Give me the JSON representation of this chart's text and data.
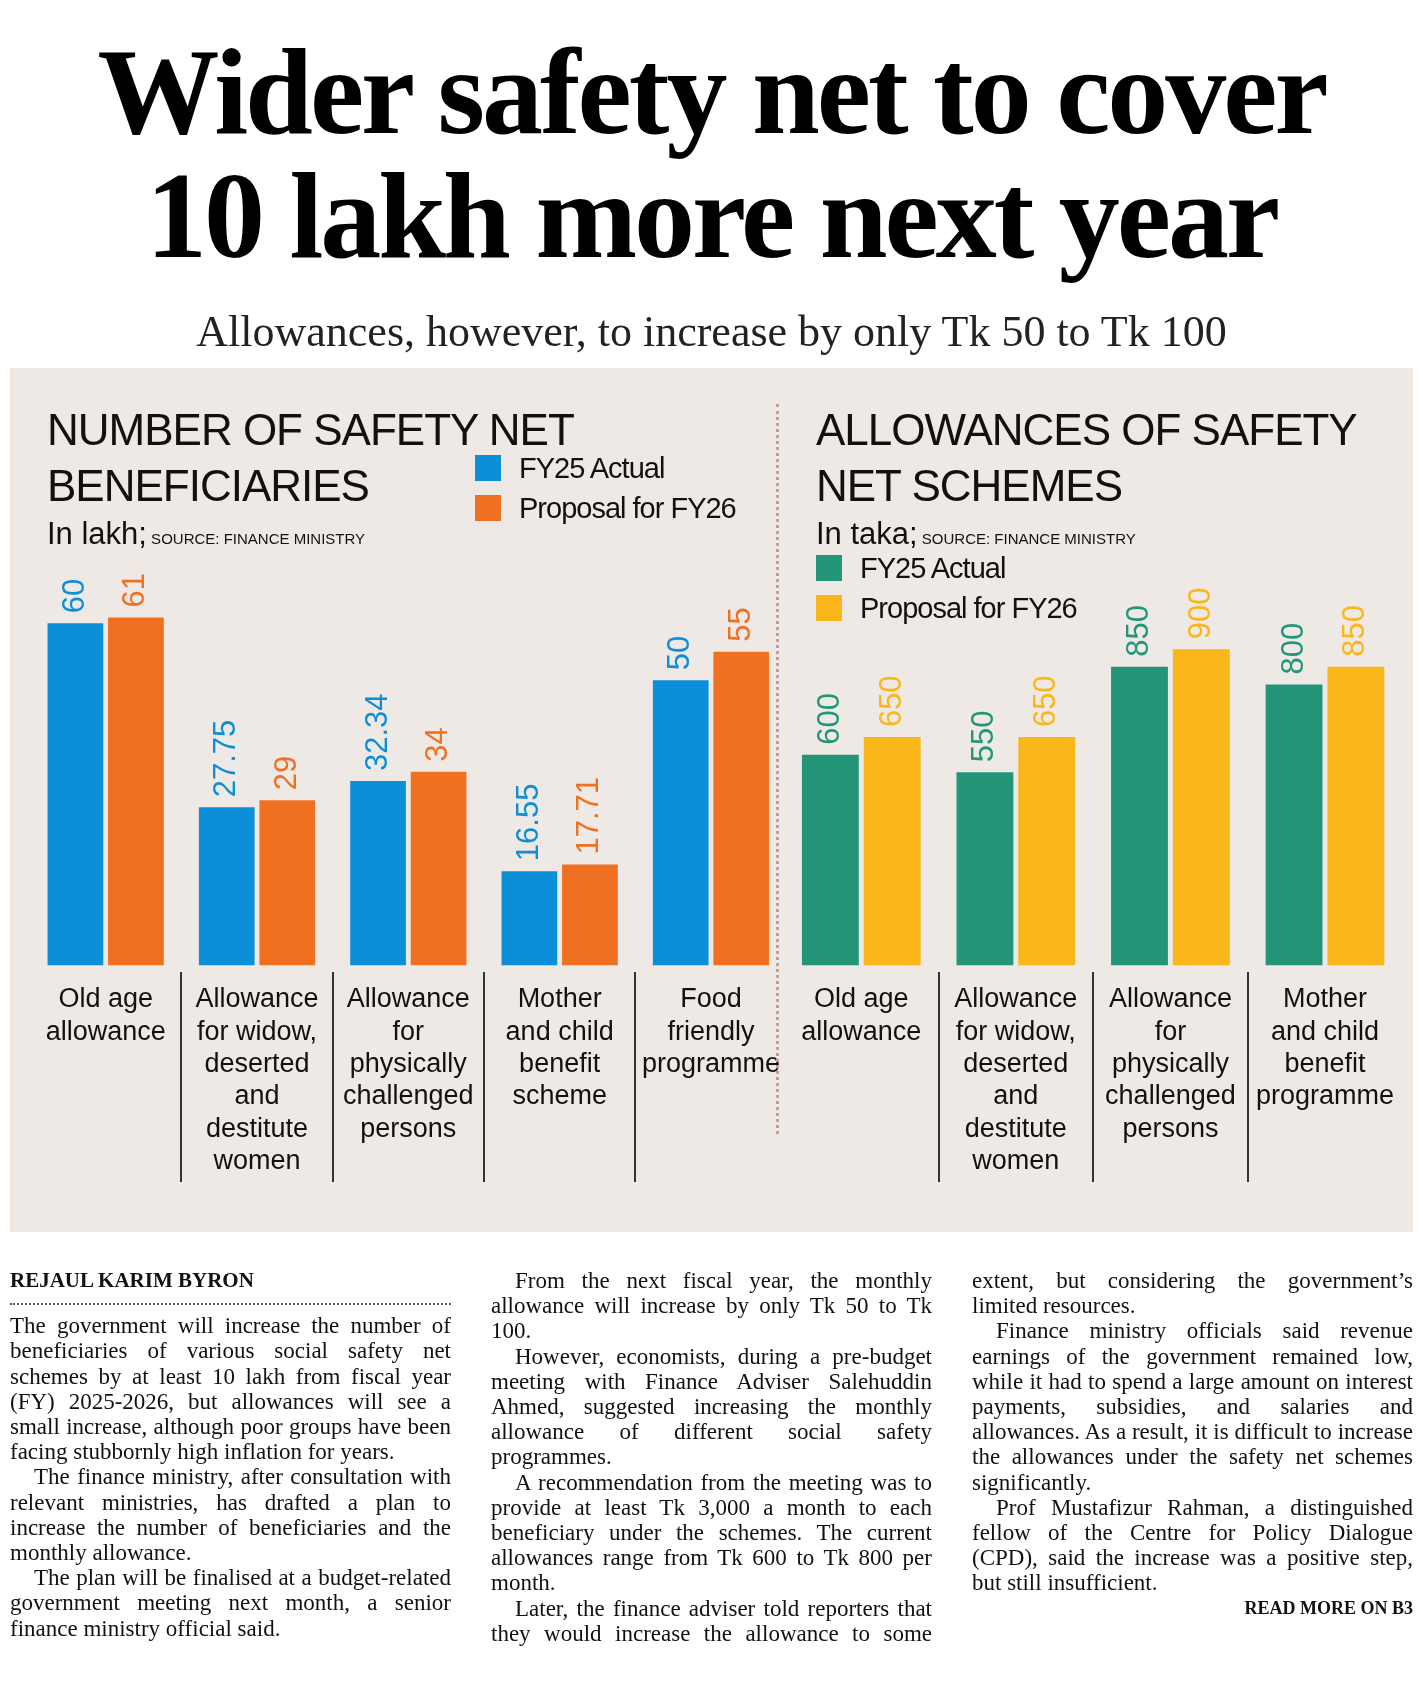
{
  "chart_data": [
    {
      "type": "other",
      "title": "Wider safety net to cover 10 lakh more next year",
      "subtitle": "Allowances, however, to increase by only Tk 50 to Tk 100"
    },
    {
      "type": "bar",
      "title": "NUMBER OF SAFETY NET BENEFICIARIES",
      "subtitle": "In lakh;",
      "annotations": [
        "SOURCE: FINANCE MINISTRY"
      ],
      "categories": [
        "Old age allowance",
        "Allowance for widow, deserted and destitute women",
        "Allowance for physically challenged persons",
        "Mother and child benefit scheme",
        "Food friendly programme"
      ],
      "series": [
        {
          "name": "FY25 Actual",
          "color": "#0a8fd8",
          "values": [
            60,
            27.75,
            32.34,
            16.55,
            50
          ]
        },
        {
          "name": "Proposal for FY26",
          "color": "#f07022",
          "values": [
            61,
            29,
            34,
            17.71,
            55
          ]
        }
      ],
      "data_labels": true,
      "legend": "top right"
    },
    {
      "type": "bar",
      "title": "ALLOWANCES OF SAFETY NET SCHEMES",
      "subtitle": "In taka;",
      "annotations": [
        "SOURCE: FINANCE MINISTRY"
      ],
      "categories": [
        "Old age allowance",
        "Allowance for widow, deserted and destitute women",
        "Allowance for physically challenged persons",
        "Mother and child benefit programme"
      ],
      "series": [
        {
          "name": "FY25 Actual",
          "color": "#23967a",
          "values": [
            600,
            550,
            850,
            800
          ]
        },
        {
          "name": "Proposal for FY26",
          "color": "#fbb619",
          "values": [
            650,
            650,
            900,
            850
          ]
        }
      ],
      "data_labels": true,
      "legend": "top left"
    },
    {
      "type": "other",
      "annotations": [
        "REJAUL KARIM BYRON",
        "The government will increase the number of beneficiaries of various social safety net schemes by at least 10 lakh from fiscal year (FY) 2025-2026, but allowances will see a small increase, although poor groups have been facing stubbornly high inflation for years.",
        "The finance ministry, after consultation with relevant ministries, has drafted a plan to increase the number of beneficiaries and the monthly allowance.",
        "The plan will be finalised at a budget-related government meeting next month, a senior finance ministry official said.",
        "From the next fiscal year, the monthly allowance will increase by only Tk 50 to Tk 100.",
        "However, economists, during a pre-budget meeting with Finance Adviser Salehuddin Ahmed, suggested increasing the monthly allowance of different social safety programmes.",
        "A recommendation from the meeting was to provide at least Tk 3,000 a month to each beneficiary under the schemes. The current allowances range from Tk 600 to Tk 800 per month.",
        "Later, the finance adviser told reporters that they would increase the allowance to some extent, but considering the government’s limited resources.",
        "Finance ministry officials said revenue earnings of the government remained low, while it had to spend a large amount on interest payments, subsidies, and salaries and allowances. As a result, it is difficult to increase the allowances under the safety net schemes significantly.",
        "Prof Mustafizur Rahman, a distinguished fellow of the Centre for Policy Dialogue (CPD), said the increase was a positive step, but still insufficient.",
        "READ MORE ON B3"
      ]
    }
  ]
}
